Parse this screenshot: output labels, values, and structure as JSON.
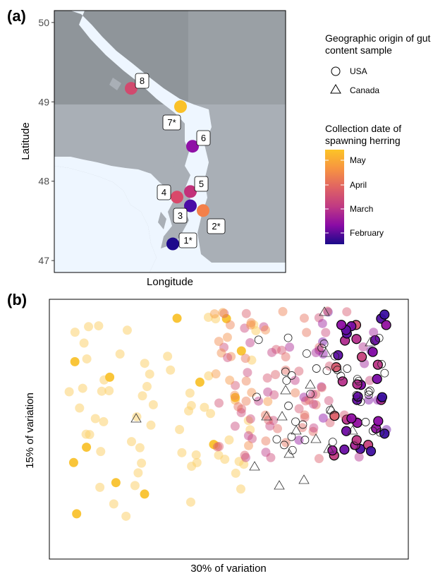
{
  "chart_data": [
    {
      "panel": "(a)",
      "type": "scatter",
      "xlabel": "Longitude",
      "ylabel": "Latitude",
      "ylim": [
        46.85,
        50.15
      ],
      "yticks": [
        47,
        48,
        49,
        50
      ],
      "legend": {
        "shape_title": "Geographic origin of gut content sample",
        "shapes": [
          {
            "label": "USA",
            "shape": "circle"
          },
          {
            "label": "Canada",
            "shape": "triangle"
          }
        ],
        "color_title": "Collection date of spawning herring",
        "color_labels": [
          "May",
          "April",
          "March",
          "February"
        ]
      },
      "sites": [
        {
          "label": "1*",
          "y": 47.21,
          "color": "#1e0a8c"
        },
        {
          "label": "2*",
          "y": 47.63,
          "color": "#f3804a"
        },
        {
          "label": "3",
          "y": 47.69,
          "color": "#4b0ba6"
        },
        {
          "label": "4",
          "y": 47.8,
          "color": "#d9486a"
        },
        {
          "label": "5",
          "y": 47.87,
          "color": "#c2317a"
        },
        {
          "label": "6",
          "y": 48.44,
          "color": "#8f11a6"
        },
        {
          "label": "7*",
          "y": 48.94,
          "color": "#fac128"
        },
        {
          "label": "8",
          "y": 49.17,
          "color": "#d14a6e"
        }
      ]
    },
    {
      "panel": "(b)",
      "type": "scatter",
      "xlabel": "30% of variation",
      "ylabel": "15% of variation"
    }
  ],
  "colors": {
    "land": "#a9afb6",
    "land_upper_left": "#8f959a",
    "water": "#eef6ff"
  }
}
